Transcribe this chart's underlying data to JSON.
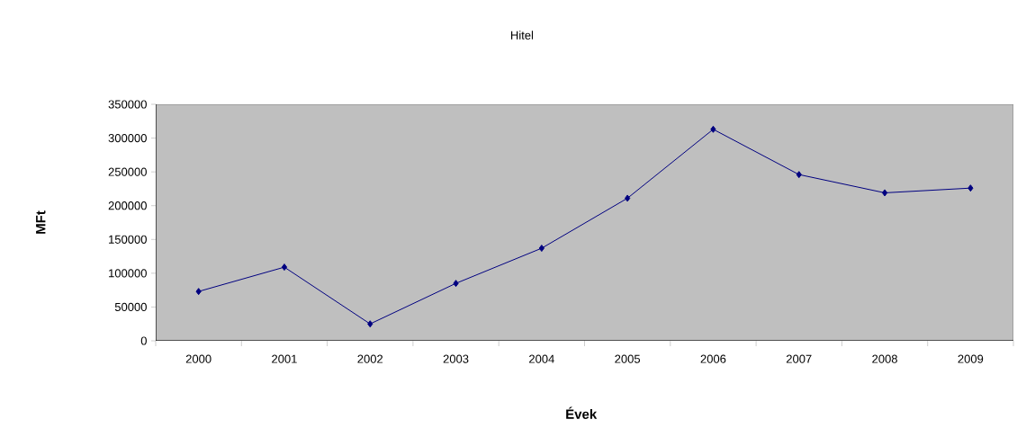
{
  "chart_data": {
    "type": "line",
    "title": "Hitel",
    "xlabel": "Évek",
    "ylabel": "MFt",
    "categories": [
      "2000",
      "2001",
      "2002",
      "2003",
      "2004",
      "2005",
      "2006",
      "2007",
      "2008",
      "2009"
    ],
    "series": [
      {
        "color": "#000080",
        "values": [
          73000,
          109000,
          25000,
          85000,
          137000,
          211000,
          313000,
          246000,
          219000,
          226000
        ]
      }
    ],
    "ylim": [
      0,
      350000
    ],
    "yticks": [
      0,
      50000,
      100000,
      150000,
      200000,
      250000,
      300000,
      350000
    ],
    "marker": "diamond",
    "line_style": "solid",
    "grid": false
  }
}
